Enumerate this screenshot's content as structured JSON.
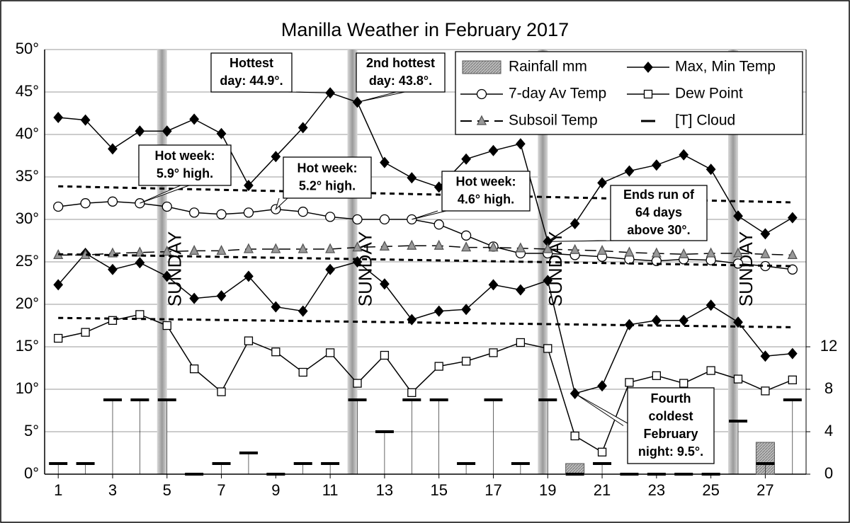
{
  "chart_data": {
    "type": "line",
    "title": "Manilla Weather in February 2017",
    "x": [
      1,
      2,
      3,
      4,
      5,
      6,
      7,
      8,
      9,
      10,
      11,
      12,
      13,
      14,
      15,
      16,
      17,
      18,
      19,
      20,
      21,
      22,
      23,
      24,
      25,
      26,
      27,
      28
    ],
    "xlim": [
      0.5,
      28.5
    ],
    "xticks": [
      1,
      3,
      5,
      7,
      9,
      11,
      13,
      15,
      17,
      19,
      21,
      23,
      25,
      27
    ],
    "ylim": [
      0,
      50
    ],
    "yticks": [
      {
        "value": 0,
        "label": "0°"
      },
      {
        "value": 5,
        "label": "5°"
      },
      {
        "value": 10,
        "label": "10°"
      },
      {
        "value": 15,
        "label": "15°"
      },
      {
        "value": 20,
        "label": "20°"
      },
      {
        "value": 25,
        "label": "25°"
      },
      {
        "value": 30,
        "label": "30°"
      },
      {
        "value": 35,
        "label": "35°"
      },
      {
        "value": 40,
        "label": "40°"
      },
      {
        "value": 45,
        "label": "45°"
      },
      {
        "value": 50,
        "label": "50°"
      }
    ],
    "y2lim": [
      0,
      40
    ],
    "y2ticks": [
      0,
      4,
      8,
      12
    ],
    "grid": true,
    "series": [
      {
        "name": "Rainfall mm",
        "type": "bar",
        "axis": "y2",
        "color": "#a6a6a6",
        "values": [
          0,
          0,
          0,
          0,
          0,
          0,
          0,
          0,
          0,
          0,
          0,
          0,
          0,
          0,
          0,
          0,
          0,
          0,
          0,
          1,
          0,
          0,
          0,
          0,
          0,
          0,
          3,
          0
        ]
      },
      {
        "name": "Max, Min Temp",
        "marker": "diamond",
        "color": "#000000",
        "values": [
          42.0,
          41.7,
          38.3,
          40.4,
          40.4,
          41.8,
          40.1,
          34.0,
          37.4,
          40.8,
          44.9,
          43.8,
          36.7,
          34.9,
          33.8,
          37.1,
          38.1,
          38.9,
          27.4,
          29.5,
          34.3,
          35.7,
          36.4,
          37.6,
          35.9,
          30.4,
          28.3,
          30.2
        ]
      },
      {
        "marker": "diamond",
        "color": "#000000",
        "values": [
          22.3,
          26.0,
          24.1,
          24.9,
          23.3,
          20.7,
          21.0,
          23.3,
          19.7,
          19.2,
          24.1,
          25.0,
          22.4,
          18.2,
          19.2,
          19.4,
          22.3,
          21.7,
          22.8,
          9.5,
          10.4,
          17.6,
          18.1,
          18.1,
          19.9,
          17.9,
          13.9,
          14.2
        ]
      },
      {
        "name": "7-day Av Temp",
        "marker": "circle",
        "color": "#000000",
        "values": [
          31.5,
          31.9,
          32.1,
          31.9,
          31.5,
          30.8,
          30.6,
          30.8,
          31.2,
          30.9,
          30.3,
          30.0,
          30.0,
          30.0,
          29.4,
          28.1,
          26.8,
          26.0,
          26.0,
          25.8,
          25.6,
          25.3,
          25.1,
          25.3,
          25.2,
          24.8,
          24.5,
          24.1
        ]
      },
      {
        "name": "Dew Point",
        "marker": "square",
        "color": "#000000",
        "values": [
          16.0,
          16.7,
          18.1,
          18.8,
          17.5,
          12.4,
          9.7,
          15.7,
          14.4,
          12.0,
          14.3,
          10.7,
          14.0,
          9.6,
          12.7,
          13.3,
          14.3,
          15.5,
          14.8,
          4.5,
          2.6,
          10.8,
          11.6,
          10.7,
          12.2,
          11.2,
          9.8,
          11.1
        ]
      },
      {
        "name": "Subsoil Temp",
        "marker": "triangle",
        "dash": "long",
        "color": "#000000",
        "values": [
          25.8,
          25.8,
          26.0,
          26.1,
          26.2,
          26.3,
          26.3,
          26.5,
          26.5,
          26.5,
          26.5,
          26.7,
          26.8,
          26.9,
          26.9,
          26.7,
          26.7,
          26.6,
          26.5,
          26.4,
          26.3,
          26.1,
          26.0,
          25.9,
          26.0,
          26.0,
          25.9,
          25.8
        ]
      },
      {
        "name": "[T] Cloud",
        "marker": "dash",
        "axis": "y2",
        "color": "#000000",
        "values": [
          1,
          1,
          7,
          7,
          7,
          0,
          1,
          2,
          0,
          1,
          1,
          7,
          4,
          7,
          7,
          1,
          7,
          1,
          7,
          0,
          1,
          0,
          0,
          0,
          0,
          5,
          1,
          7
        ]
      },
      {
        "marker": "none",
        "dash": "short",
        "color": "#000000",
        "x": [
          1,
          28
        ],
        "values": [
          33.9,
          32.0
        ]
      },
      {
        "marker": "none",
        "dash": "short",
        "color": "#000000",
        "x": [
          1,
          28
        ],
        "values": [
          25.9,
          24.5
        ]
      },
      {
        "marker": "none",
        "dash": "short",
        "color": "#000000",
        "x": [
          1,
          28
        ],
        "values": [
          18.4,
          17.3
        ]
      }
    ],
    "sundays": [
      5,
      12,
      19,
      26
    ],
    "sunday_label": "SUNDAY",
    "annotations": [
      {
        "lines": [
          "Hottest",
          "day: 44.9°."
        ]
      },
      {
        "lines": [
          "2nd hottest",
          "day: 43.8°."
        ]
      },
      {
        "lines": [
          "Hot week:",
          "5.9° high."
        ]
      },
      {
        "lines": [
          "Hot week:",
          "5.2° high."
        ]
      },
      {
        "lines": [
          "Hot week:",
          "4.6° high."
        ]
      },
      {
        "lines": [
          "Ends run of",
          "64 days",
          "above 30°."
        ]
      },
      {
        "lines": [
          "Fourth",
          "coldest",
          "February",
          "night: 9.5°."
        ]
      }
    ]
  }
}
